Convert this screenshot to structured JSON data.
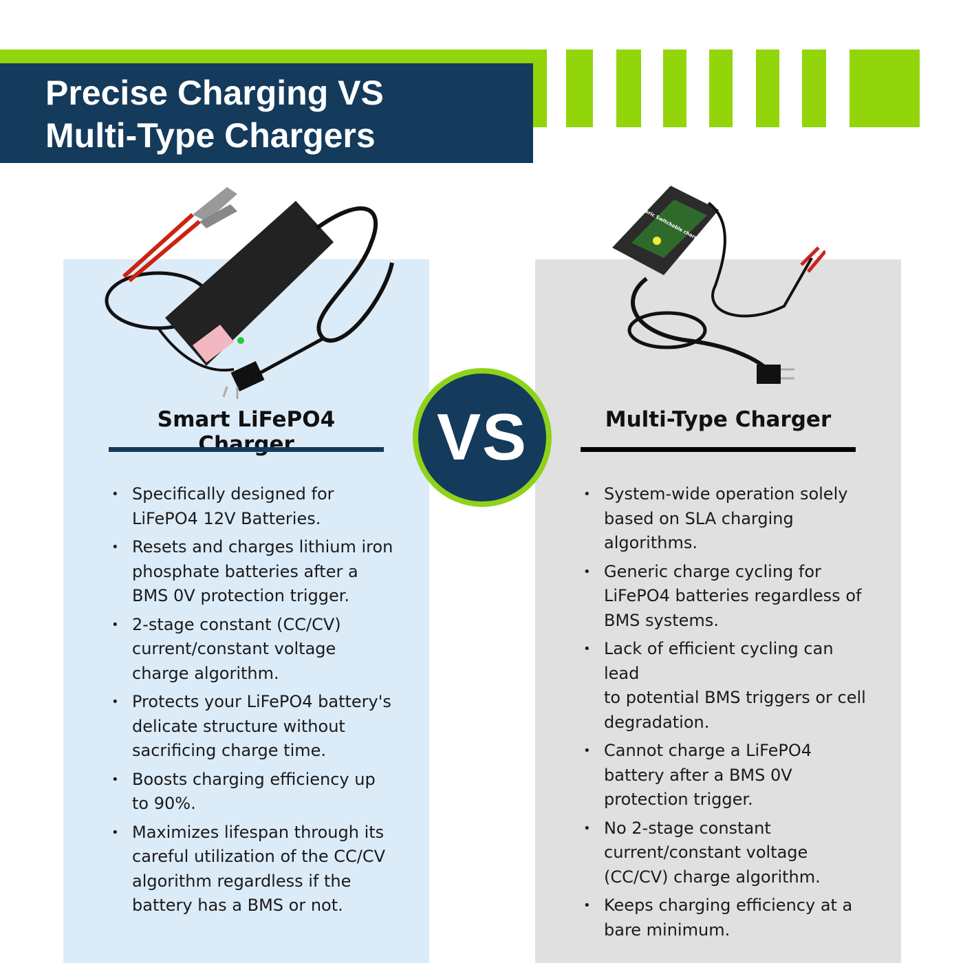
{
  "header": {
    "title_lines": [
      "Precise Charging VS",
      "Multi-Type Chargers"
    ]
  },
  "colors": {
    "accent_green": "#92d50b",
    "navy": "#143a5c",
    "left_panel": "#dcebf8",
    "right_panel": "#e0e0e0"
  },
  "vs_badge": "VS",
  "left": {
    "title": "Smart LiFePO4 Charger",
    "image": "smart-charger-image",
    "items": [
      [
        "Specifically designed for",
        "LiFePO4 12V Batteries."
      ],
      [
        "Resets and charges lithium iron",
        "phosphate batteries after a",
        "BMS 0V protection trigger."
      ],
      [
        "2-stage constant (CC/CV)",
        "current/constant voltage",
        "charge algorithm."
      ],
      [
        "Protects your LiFePO4 battery's",
        "delicate structure without",
        "sacrificing charge time."
      ],
      [
        "Boosts charging efficiency up",
        "to 90%."
      ],
      [
        "Maximizes lifespan through its",
        "careful utilization of the CC/CV",
        "algorithm regardless if the",
        "battery has a BMS or not."
      ]
    ]
  },
  "right": {
    "title": "Multi-Type Charger",
    "image": "generic-charger-image",
    "image_label": "Generic Switchable charger",
    "items": [
      [
        "System-wide operation solely",
        "based on SLA charging",
        "algorithms."
      ],
      [
        "Generic charge cycling for",
        "LiFePO4 batteries regardless of",
        "BMS systems."
      ],
      [
        "Lack of efficient cycling can lead",
        "to potential BMS triggers or cell",
        "degradation."
      ],
      [
        "Cannot charge a LiFePO4",
        "battery after a BMS 0V",
        "protection trigger."
      ],
      [
        "No 2-stage constant",
        "current/constant voltage",
        "(CC/CV) charge algorithm."
      ],
      [
        "Keeps charging efficiency at a",
        "bare minimum."
      ]
    ]
  }
}
